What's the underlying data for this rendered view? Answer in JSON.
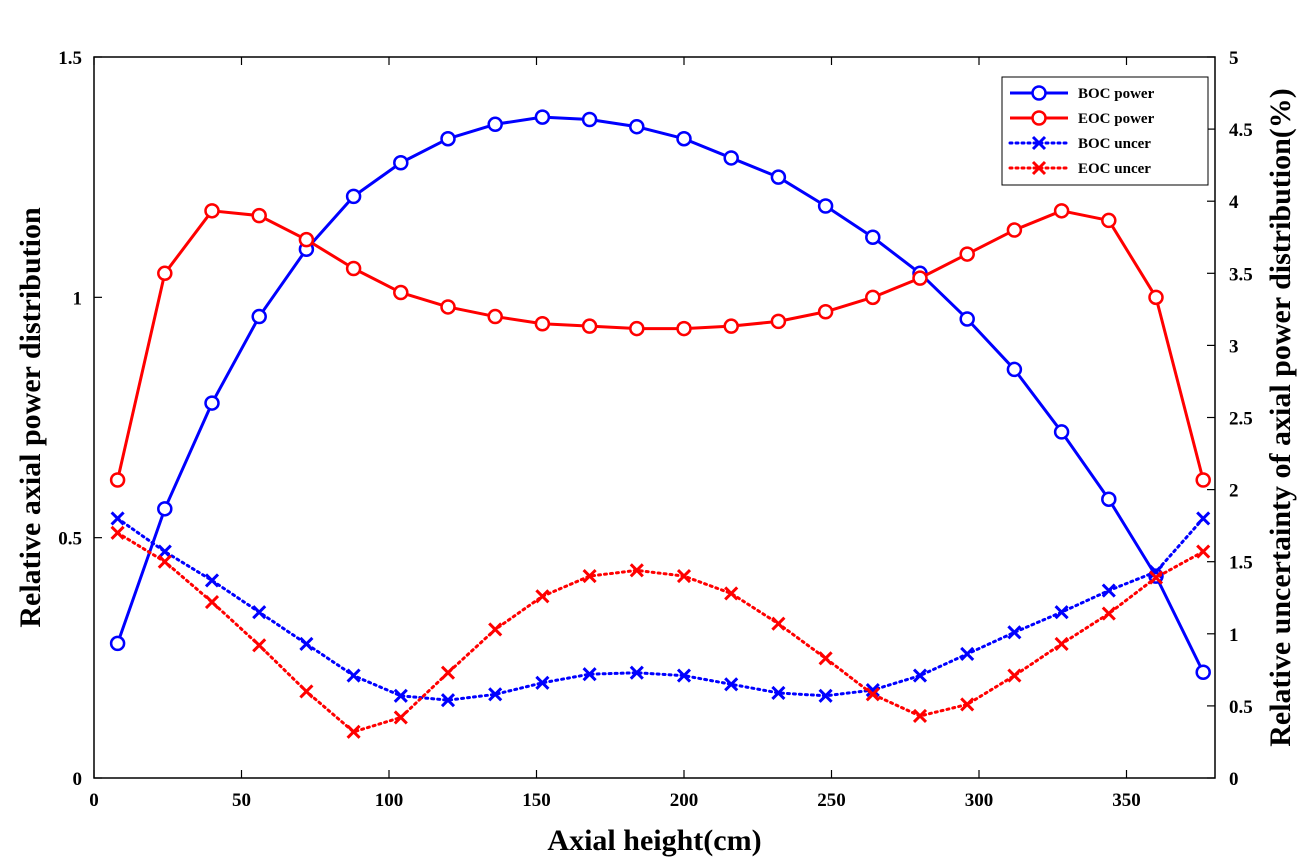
{
  "chart_data": {
    "type": "line",
    "xlabel": "Axial height(cm)",
    "ylabel": "Relative axial power distribution",
    "y2label": "Relative uncertainty of axial power distribution(%)",
    "xlim": [
      0,
      380
    ],
    "ylim": [
      0,
      1.5
    ],
    "y2lim": [
      0,
      5
    ],
    "xticks": [
      0,
      50,
      100,
      150,
      200,
      250,
      300,
      350
    ],
    "yticks": [
      0,
      0.5,
      1,
      1.5
    ],
    "y2ticks": [
      0,
      0.5,
      1,
      1.5,
      2,
      2.5,
      3,
      3.5,
      4,
      4.5,
      5
    ],
    "ytick_labels": [
      "0",
      "0.5",
      "1",
      "1.5"
    ],
    "y2tick_labels": [
      "0",
      "0.5",
      "1",
      "1.5",
      "2",
      "2.5",
      "3",
      "3.5",
      "4",
      "4.5",
      "5"
    ],
    "grid": false,
    "legend_position": "top-right",
    "x": [
      8,
      24,
      40,
      56,
      72,
      88,
      104,
      120,
      136,
      152,
      168,
      184,
      200,
      216,
      232,
      248,
      264,
      280,
      296,
      312,
      328,
      344,
      360,
      376
    ],
    "series": [
      {
        "name": "BOC power",
        "axis": "left",
        "color": "#0000ff",
        "style": "solid",
        "marker": "circle",
        "values": [
          0.28,
          0.56,
          0.78,
          0.96,
          1.1,
          1.21,
          1.28,
          1.33,
          1.36,
          1.375,
          1.37,
          1.355,
          1.33,
          1.29,
          1.25,
          1.19,
          1.125,
          1.05,
          0.955,
          0.85,
          0.72,
          0.58,
          0.42,
          0.22
        ]
      },
      {
        "name": "EOC power",
        "axis": "left",
        "color": "#ff0000",
        "style": "solid",
        "marker": "circle",
        "values": [
          0.62,
          1.05,
          1.18,
          1.17,
          1.12,
          1.06,
          1.01,
          0.98,
          0.96,
          0.945,
          0.94,
          0.935,
          0.935,
          0.94,
          0.95,
          0.97,
          1.0,
          1.04,
          1.09,
          1.14,
          1.18,
          1.16,
          1.0,
          0.62
        ]
      },
      {
        "name": "BOC uncer",
        "axis": "right",
        "color": "#0000ff",
        "style": "dotted",
        "marker": "x",
        "values": [
          1.8,
          1.57,
          1.37,
          1.15,
          0.93,
          0.71,
          0.57,
          0.54,
          0.58,
          0.66,
          0.72,
          0.73,
          0.71,
          0.65,
          0.59,
          0.57,
          0.61,
          0.71,
          0.86,
          1.01,
          1.15,
          1.3,
          1.43,
          1.8
        ]
      },
      {
        "name": "EOC uncer",
        "axis": "right",
        "color": "#ff0000",
        "style": "dotted",
        "marker": "x",
        "values": [
          1.7,
          1.5,
          1.22,
          0.92,
          0.6,
          0.32,
          0.42,
          0.73,
          1.03,
          1.26,
          1.4,
          1.44,
          1.4,
          1.28,
          1.07,
          0.83,
          0.58,
          0.43,
          0.51,
          0.71,
          0.93,
          1.14,
          1.39,
          1.57
        ]
      }
    ]
  }
}
